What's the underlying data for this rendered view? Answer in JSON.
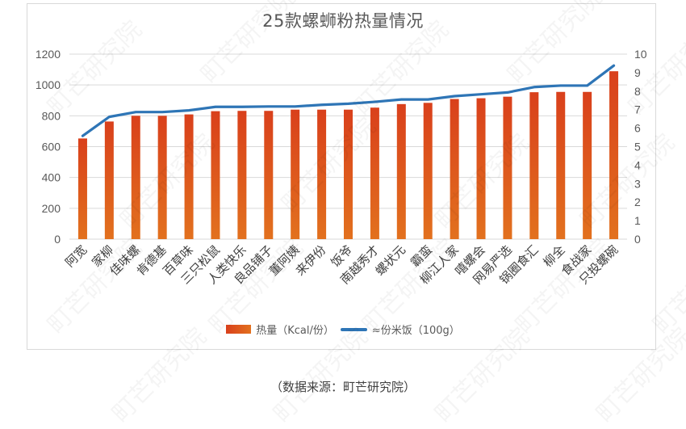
{
  "title": "25款螺蛳粉热量情况",
  "source": "（数据来源：町芒研究院）",
  "watermark": "町芒研究院",
  "colors": {
    "bar_top": "#d9401c",
    "bar_bottom": "#e2711e",
    "line": "#2e75b6",
    "grid": "#d9d9d9",
    "axis_text": "#595959"
  },
  "legend": [
    {
      "type": "bar",
      "label": "热量（Kcal/份）"
    },
    {
      "type": "line",
      "label": "≈份米饭（100g）"
    }
  ],
  "chart_data": {
    "type": "bar+line",
    "title": "25款螺蛳粉热量情况",
    "categories": [
      "阿宽",
      "家柳",
      "佳味螺",
      "肯德基",
      "百草味",
      "三只松鼠",
      "人类快乐",
      "良品铺子",
      "董阿姨",
      "来伊份",
      "饭爷",
      "南越秀才",
      "螺状元",
      "霸蛮",
      "柳江人家",
      "嘻螺会",
      "网易严选",
      "锅圈食汇",
      "柳全",
      "食战家",
      "只投螺碗"
    ],
    "series": [
      {
        "name": "热量（Kcal/份）",
        "type": "bar",
        "axis": "left",
        "values": [
          653,
          763,
          800,
          800,
          809,
          830,
          832,
          832,
          840,
          840,
          840,
          853,
          876,
          884,
          909,
          914,
          924,
          953,
          955,
          955,
          1089
        ]
      },
      {
        "name": "≈份米饭（100g）",
        "type": "line",
        "axis": "right",
        "values": [
          5.58,
          6.61,
          6.87,
          6.87,
          6.96,
          7.15,
          7.15,
          7.17,
          7.17,
          7.26,
          7.32,
          7.42,
          7.55,
          7.55,
          7.73,
          7.83,
          7.93,
          8.22,
          8.3,
          8.3,
          9.38
        ]
      }
    ],
    "y_left": {
      "min": 0,
      "max": 1200,
      "ticks": [
        0,
        200,
        400,
        600,
        800,
        1000,
        1200
      ]
    },
    "y_right": {
      "min": 0,
      "max": 10,
      "ticks": [
        0,
        1,
        2,
        3,
        4,
        5,
        6,
        7,
        8,
        9,
        10
      ]
    },
    "xlabel": "",
    "ylabel": "",
    "grid": true,
    "legend_position": "bottom"
  }
}
